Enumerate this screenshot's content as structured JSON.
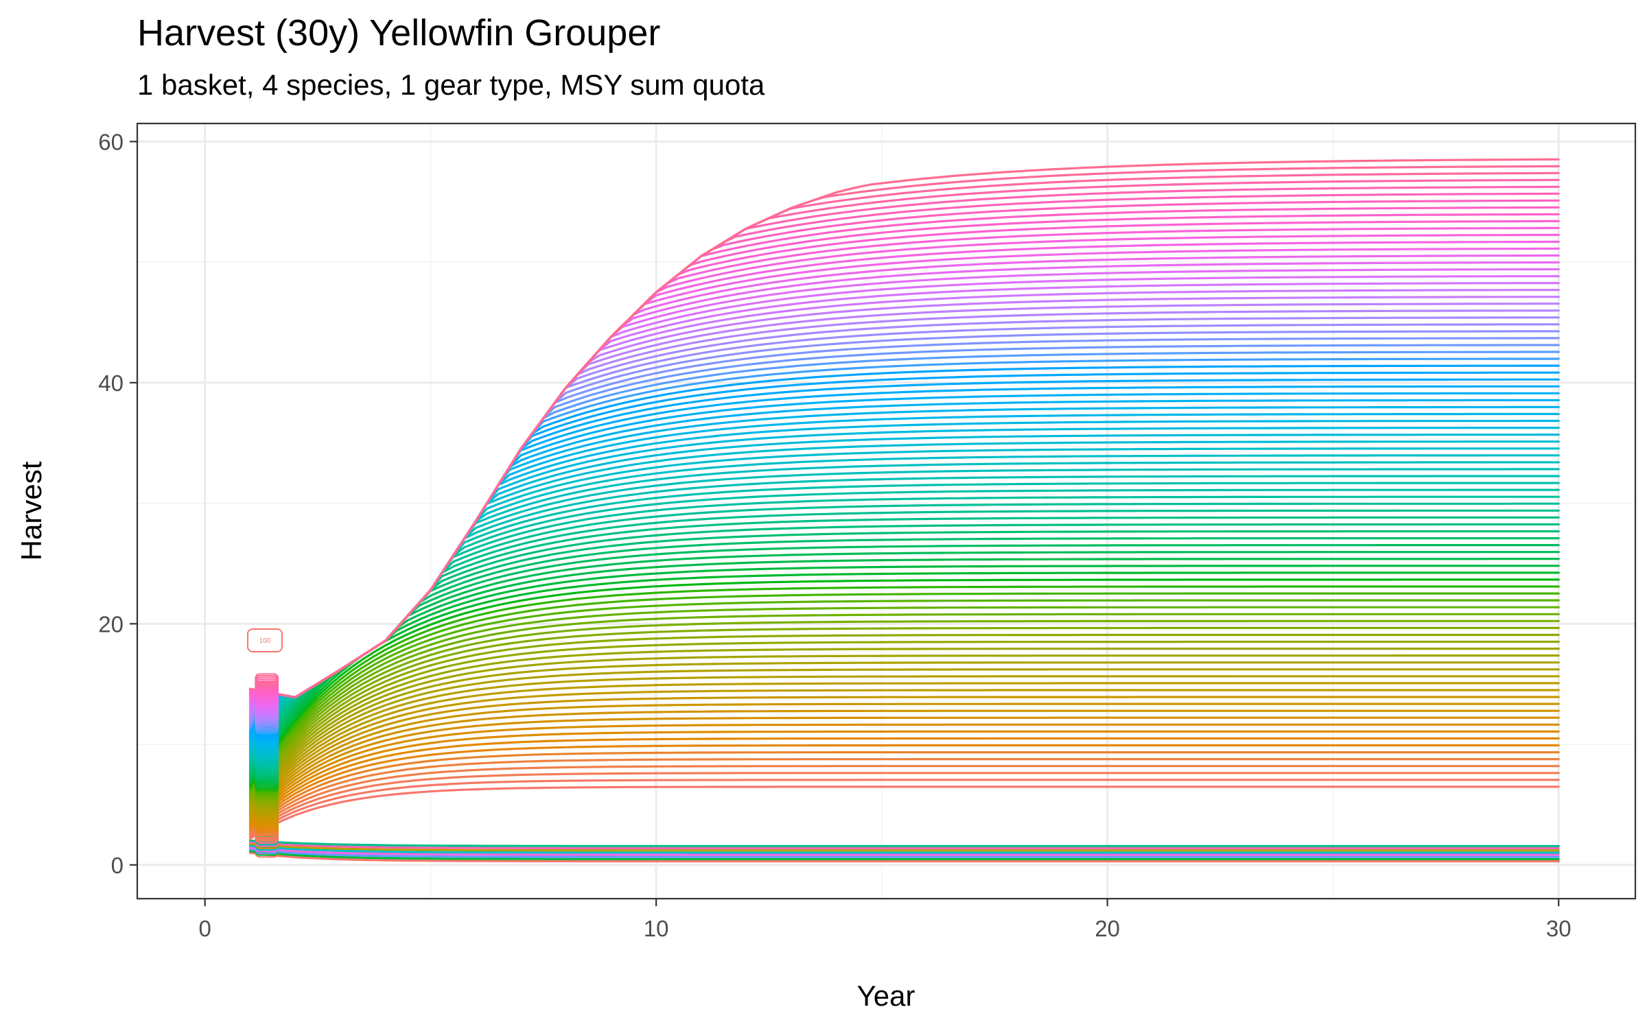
{
  "chart_data": {
    "type": "line",
    "title": "Harvest (30y) Yellowfin Grouper",
    "subtitle": "1 basket, 4 species, 1 gear type, MSY sum quota",
    "xlabel": "Year",
    "ylabel": "Harvest",
    "xlim": [
      -1.5,
      31.7
    ],
    "ylim": [
      -2.8,
      61.5
    ],
    "x_ticks": [
      0,
      10,
      20,
      30
    ],
    "y_ticks": [
      0,
      20,
      40,
      60
    ],
    "grid": true,
    "legend": "none",
    "series_count": 100,
    "final_harvest_range": [
      0.3,
      58.6
    ],
    "envelope_max_line": {
      "x": [
        1,
        2,
        3,
        4,
        5,
        6,
        7,
        8,
        9,
        10,
        11,
        12,
        13,
        14,
        15,
        16,
        17,
        18,
        19,
        20,
        21,
        22,
        23,
        24,
        25,
        26,
        27,
        28,
        29,
        30
      ],
      "y": [
        14.6,
        13.9,
        16.2,
        18.6,
        22.8,
        28.5,
        34.5,
        39.6,
        43.8,
        47.5,
        50.5,
        52.8,
        54.5,
        55.8,
        56.7,
        57.3,
        57.8,
        58.1,
        58.3,
        58.4,
        58.5,
        58.55,
        58.58,
        58.6,
        58.6,
        58.6,
        58.6,
        58.6,
        58.6,
        58.6
      ]
    },
    "annotation_tag": "100"
  }
}
